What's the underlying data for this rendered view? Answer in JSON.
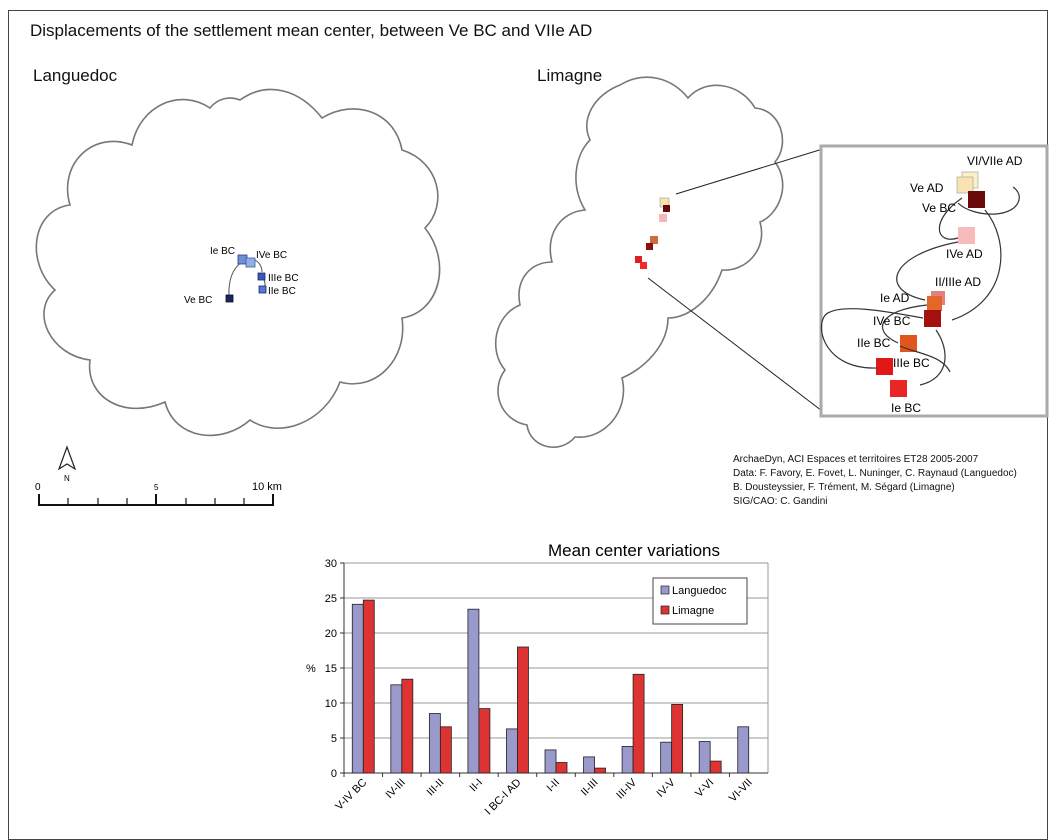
{
  "figure": {
    "title": "Displacements of the settlement mean center, between Ve BC and VIIe AD",
    "panels": [
      {
        "name": "Languedoc",
        "points": [
          "Ie BC",
          "IVe BC",
          "IIIe BC",
          "IIe BC",
          "Ve BC"
        ]
      },
      {
        "name": "Limagne",
        "inset_points": [
          "VI/VIIe AD",
          "Ve AD",
          "Ve BC",
          "IVe AD",
          "II/IIIe AD",
          "Ie AD",
          "IVe BC",
          "IIe BC",
          "IIIe BC",
          "Ie BC"
        ]
      }
    ],
    "north_arrow": "N",
    "scale_bar": {
      "ticks": [
        "0",
        "5",
        "10 km"
      ]
    },
    "credits": [
      "ArchaeDyn, ACI Espaces et territoires ET28 2005-2007",
      "Data: F. Favory, E. Fovet, L. Nuninger, C. Raynaud (Languedoc)",
      "B. Dousteyssier, F. Trément, M. Ségard (Limagne)",
      "SIG/CAO: C. Gandini"
    ]
  },
  "colors": {
    "languedoc": "#9999cc",
    "limagne": "#dd3333",
    "map_outline": "#777777",
    "languedoc_marker": "#2a3b8f",
    "languedoc_marker_light": "#8fb0e0"
  },
  "chart_data": {
    "type": "bar",
    "title": "Mean center variations",
    "ylabel": "%",
    "xlabel": "",
    "ylim": [
      0,
      30
    ],
    "yticks": [
      0,
      5,
      10,
      15,
      20,
      25,
      30
    ],
    "grid": true,
    "legend_position": "top-right",
    "categories": [
      "V-IV BC",
      "IV-III",
      "III-II",
      "II-I",
      "I BC-I AD",
      "I-II",
      "II-III",
      "III-IV",
      "IV-V",
      "V-VI",
      "VI-VII"
    ],
    "series": [
      {
        "name": "Languedoc",
        "values": [
          24.1,
          12.6,
          8.5,
          23.4,
          6.3,
          3.3,
          2.3,
          3.8,
          4.4,
          4.5,
          6.6
        ]
      },
      {
        "name": "Limagne",
        "values": [
          24.7,
          13.4,
          6.6,
          9.2,
          18.0,
          1.5,
          0.7,
          14.1,
          9.8,
          1.7,
          null
        ]
      }
    ]
  }
}
